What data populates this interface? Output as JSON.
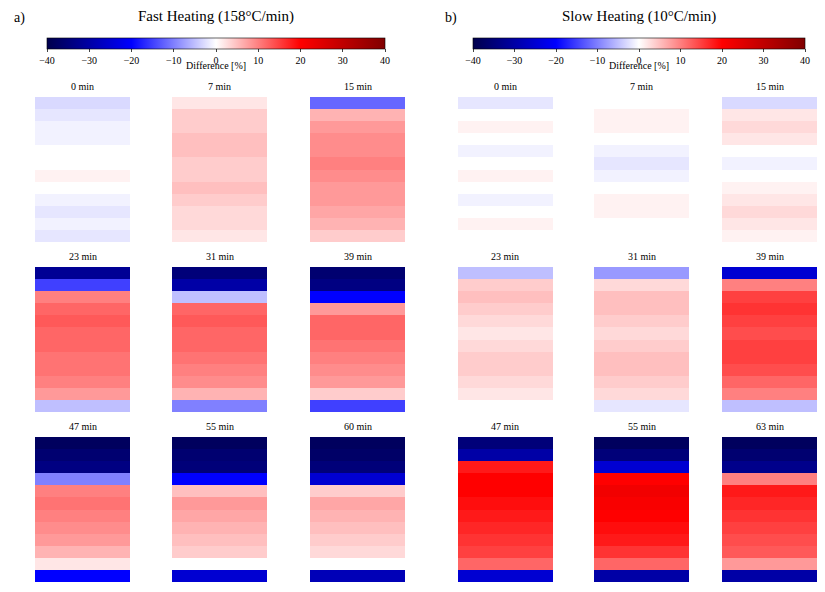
{
  "chart_data": [
    {
      "type": "heatmap",
      "label": "a)",
      "title": "Fast Heating (158°C/min)",
      "tick_labels": false,
      "colorbar": {
        "title": "Difference [%]",
        "range": [
          -40,
          40
        ],
        "ticks": [
          -40,
          -30,
          -20,
          -10,
          0,
          10,
          20,
          30,
          40
        ]
      },
      "panels": [
        {
          "title": "0 min",
          "values": [
            -3,
            -2,
            -1,
            -1,
            0,
            0,
            1,
            0,
            -1,
            -2,
            -1,
            -2
          ]
        },
        {
          "title": "7 min",
          "values": [
            2,
            4,
            4,
            5,
            5,
            4,
            4,
            5,
            4,
            3,
            3,
            2
          ]
        },
        {
          "title": "15 min",
          "values": [
            -12,
            6,
            8,
            9,
            9,
            10,
            9,
            8,
            8,
            7,
            6,
            4
          ]
        },
        {
          "title": "23 min",
          "values": [
            -32,
            -15,
            10,
            12,
            13,
            12,
            12,
            11,
            11,
            10,
            8,
            -5
          ]
        },
        {
          "title": "31 min",
          "values": [
            -35,
            -30,
            -5,
            12,
            13,
            12,
            12,
            11,
            10,
            9,
            6,
            -10
          ]
        },
        {
          "title": "39 min",
          "values": [
            -36,
            -34,
            -20,
            8,
            12,
            12,
            11,
            10,
            9,
            8,
            4,
            -15
          ]
        },
        {
          "title": "47 min",
          "values": [
            -38,
            -36,
            -34,
            -10,
            10,
            11,
            10,
            9,
            8,
            6,
            2,
            -20
          ]
        },
        {
          "title": "55 min",
          "values": [
            -38,
            -36,
            -35,
            -20,
            5,
            8,
            7,
            6,
            5,
            4,
            0,
            -25
          ]
        },
        {
          "title": "60 min",
          "values": [
            -38,
            -37,
            -35,
            -25,
            4,
            7,
            6,
            5,
            4,
            3,
            0,
            -28
          ]
        }
      ]
    },
    {
      "type": "heatmap",
      "label": "b)",
      "title": "Slow Heating (10°C/min)",
      "tick_labels": false,
      "colorbar": {
        "title": "Difference [%]",
        "range": [
          -40,
          40
        ],
        "ticks": [
          -40,
          -30,
          -20,
          -10,
          0,
          10,
          20,
          30,
          40
        ]
      },
      "panels": [
        {
          "title": "0 min",
          "values": [
            -2,
            0,
            1,
            0,
            -1,
            0,
            1,
            0,
            -1,
            0,
            1,
            0
          ]
        },
        {
          "title": "7 min",
          "values": [
            0,
            1,
            1,
            0,
            -1,
            -2,
            -1,
            0,
            1,
            1,
            0,
            0
          ]
        },
        {
          "title": "15 min",
          "values": [
            -3,
            2,
            3,
            2,
            0,
            -1,
            0,
            1,
            2,
            3,
            2,
            1
          ]
        },
        {
          "title": "23 min",
          "values": [
            -5,
            4,
            5,
            4,
            3,
            2,
            3,
            4,
            4,
            3,
            2,
            0
          ]
        },
        {
          "title": "31 min",
          "values": [
            -8,
            3,
            5,
            5,
            4,
            3,
            4,
            5,
            5,
            4,
            3,
            -2
          ]
        },
        {
          "title": "39 min",
          "values": [
            -25,
            10,
            15,
            16,
            15,
            14,
            15,
            15,
            14,
            12,
            10,
            -5
          ]
        },
        {
          "title": "47 min",
          "values": [
            -35,
            -30,
            18,
            20,
            20,
            19,
            18,
            17,
            16,
            15,
            12,
            -25
          ]
        },
        {
          "title": "55 min",
          "values": [
            -38,
            -35,
            -25,
            20,
            22,
            21,
            20,
            19,
            18,
            16,
            12,
            -30
          ]
        },
        {
          "title": "63 min",
          "values": [
            -38,
            -36,
            -33,
            10,
            18,
            17,
            16,
            15,
            14,
            13,
            8,
            -30
          ]
        }
      ]
    }
  ]
}
